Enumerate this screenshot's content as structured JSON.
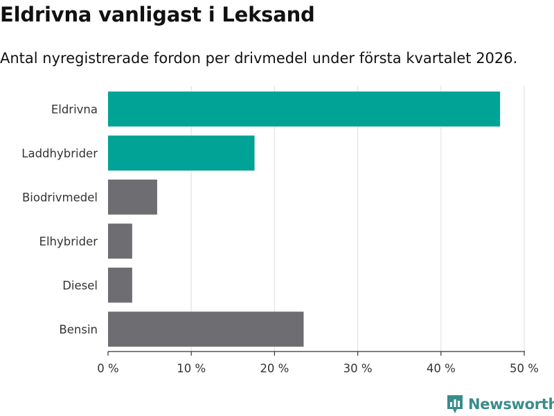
{
  "title": "Eldrivna vanligast i Leksand",
  "subtitle": "Antal nyregistrerade fordon per drivmedel under första kvartalet 2026.",
  "brand": {
    "name": "Newsworthy",
    "icon": "newsworthy-logo-icon"
  },
  "colors": {
    "highlight": "#00a396",
    "default": "#6e6d72",
    "grid": "#dddddd",
    "axis": "#333333",
    "brand": "#3a8c8c"
  },
  "chart_data": {
    "type": "bar",
    "orientation": "horizontal",
    "title": "Eldrivna vanligast i Leksand",
    "subtitle": "Antal nyregistrerade fordon per drivmedel under första kvartalet 2026.",
    "xlabel": "",
    "ylabel": "",
    "categories": [
      "Eldrivna",
      "Laddhybrider",
      "Biodrivmedel",
      "Elhybrider",
      "Diesel",
      "Bensin"
    ],
    "values": [
      47.1,
      17.6,
      5.9,
      2.9,
      2.9,
      23.5
    ],
    "highlighted": [
      true,
      true,
      false,
      false,
      false,
      false
    ],
    "xlim": [
      0,
      50
    ],
    "ticks": [
      0,
      10,
      20,
      30,
      40,
      50
    ],
    "tick_labels": [
      "0 %",
      "10 %",
      "20 %",
      "30 %",
      "40 %",
      "50 %"
    ],
    "grid": true
  }
}
